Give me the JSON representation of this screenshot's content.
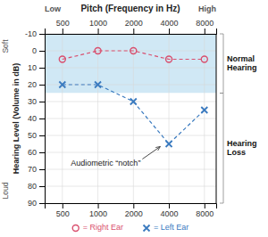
{
  "chart_data": {
    "type": "line",
    "title": "Pitch (Frequency in Hz)",
    "y_label": "Hearing Level (Volume in dB)",
    "x": [
      500,
      1000,
      2000,
      4000,
      8000
    ],
    "series": [
      {
        "name": "= Right Ear",
        "color": "#d94f6e",
        "marker": "circle",
        "line_style": "dashed",
        "values": [
          5,
          0,
          0,
          5,
          5
        ]
      },
      {
        "name": "= Left Ear",
        "color": "#3a7abf",
        "marker": "x",
        "line_style": "dashed",
        "values": [
          20,
          20,
          30,
          55,
          35
        ]
      }
    ],
    "log": "x",
    "xlim": [
      353.98,
      10071.4
    ],
    "xticks": [
      500,
      1000,
      2000,
      4000,
      8000
    ],
    "ylim": [
      90,
      -10
    ],
    "yticks": [
      -10,
      0,
      10,
      20,
      30,
      40,
      50,
      60,
      70,
      80,
      90
    ],
    "grid": true,
    "legend": "bottom",
    "x_end_labels": [
      "Low",
      "High"
    ],
    "y_end_labels": [
      "Soft",
      "Loud"
    ],
    "bands": [
      {
        "label": "Normal\nHearing",
        "y": [
          -10,
          25
        ],
        "color": "#d0e8f5"
      },
      {
        "label": "Hearing\nLoss",
        "y": [
          25,
          90
        ],
        "color": "#ffffff"
      }
    ],
    "annotations": [
      {
        "text": "Audiometric “notch”",
        "x": 3499.4,
        "y": 55
      }
    ]
  }
}
